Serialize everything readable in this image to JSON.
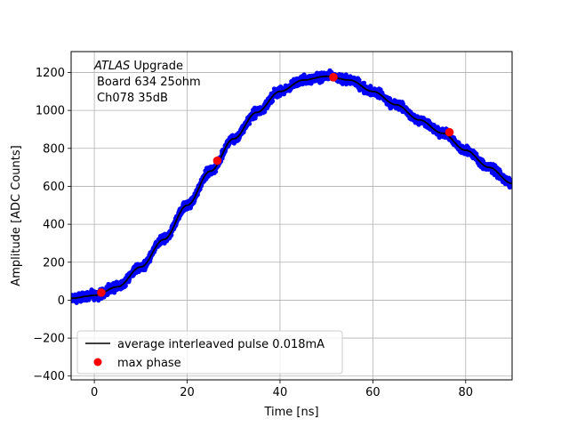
{
  "chart_data": {
    "type": "scatter",
    "title": "",
    "xlabel": "Time [ns]",
    "ylabel": "Amplitude [ADC Counts]",
    "xlim": [
      -5,
      90
    ],
    "ylim": [
      -420,
      1310
    ],
    "xticks": [
      0,
      20,
      40,
      60,
      80
    ],
    "yticks": [
      -400,
      -200,
      0,
      200,
      400,
      600,
      800,
      1000,
      1200
    ],
    "xtick_labels": [
      "0",
      "20",
      "40",
      "60",
      "80"
    ],
    "ytick_labels": [
      "−400",
      "−200",
      "0",
      "200",
      "400",
      "600",
      "800",
      "1000",
      "1200"
    ],
    "grid": true,
    "legend_placement": "lower-left",
    "annotation": {
      "line1_italic": "ATLAS",
      "line1_rest": " Upgrade",
      "line2": "Board 634 25ohm",
      "line3": "Ch078 35dB"
    },
    "series": [
      {
        "name": "",
        "kind": "scatter",
        "color": "#0000ff",
        "note_points": "dense samples following the average pulse with small noise",
        "x": [
          -5,
          0,
          5,
          10,
          15,
          20,
          25,
          30,
          35,
          40,
          45,
          50,
          55,
          60,
          65,
          70,
          75,
          80,
          85,
          90
        ],
        "y": [
          10,
          25,
          70,
          175,
          320,
          500,
          680,
          850,
          990,
          1100,
          1160,
          1180,
          1160,
          1100,
          1030,
          950,
          880,
          790,
          700,
          615
        ]
      },
      {
        "name": "average interleaved pulse 0.018mA",
        "kind": "line",
        "color": "#000000",
        "x": [
          -5,
          0,
          5,
          10,
          15,
          20,
          25,
          30,
          35,
          40,
          45,
          50,
          55,
          60,
          65,
          70,
          75,
          80,
          85,
          90
        ],
        "y": [
          10,
          25,
          70,
          175,
          320,
          500,
          680,
          850,
          990,
          1100,
          1160,
          1180,
          1160,
          1100,
          1030,
          950,
          880,
          790,
          700,
          615
        ]
      },
      {
        "name": "max phase",
        "kind": "marker",
        "color": "#ff0000",
        "x": [
          1.5,
          26.5,
          51.5,
          76.5
        ],
        "y": [
          40,
          735,
          1175,
          885
        ]
      }
    ]
  }
}
